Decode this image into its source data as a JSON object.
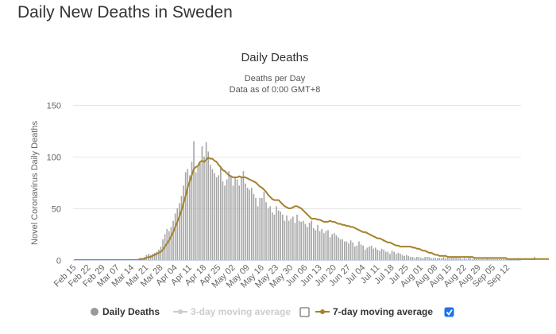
{
  "page": {
    "title": "Daily New Deaths in Sweden"
  },
  "chart_data": {
    "type": "bar",
    "title": "Daily Deaths",
    "subtitle_lines": [
      "Deaths per Day",
      "Data as of 0:00 GMT+8"
    ],
    "xlabel": "",
    "ylabel": "Novel Coronavirus Daily Deaths",
    "ylim": [
      0,
      150
    ],
    "y_ticks": [
      0,
      50,
      100,
      150
    ],
    "grid": true,
    "x_start_date": "Feb 15",
    "x_tick_labels": [
      "Feb 15",
      "Feb 22",
      "Feb 29",
      "Mar 07",
      "Mar 14",
      "Mar 21",
      "Mar 28",
      "Apr 04",
      "Apr 11",
      "Apr 18",
      "Apr 25",
      "May 02",
      "May 09",
      "May 16",
      "May 23",
      "May 30",
      "Jun 06",
      "Jun 13",
      "Jun 20",
      "Jun 27",
      "Jul 04",
      "Jul 11",
      "Jul 18",
      "Jul 25",
      "Aug 01",
      "Aug 08",
      "Aug 15",
      "Aug 22",
      "Aug 29",
      "Sep 05",
      "Sep 12"
    ],
    "series": [
      {
        "name": "Daily Deaths",
        "style": "bar",
        "color": "#a6a6a6",
        "values": [
          0,
          0,
          0,
          0,
          0,
          0,
          0,
          0,
          0,
          0,
          0,
          0,
          0,
          0,
          0,
          0,
          0,
          0,
          0,
          0,
          0,
          0,
          0,
          0,
          0,
          0,
          0,
          0,
          1,
          0,
          1,
          1,
          2,
          2,
          3,
          5,
          6,
          5,
          6,
          7,
          8,
          10,
          13,
          20,
          25,
          30,
          28,
          32,
          38,
          45,
          50,
          55,
          62,
          72,
          85,
          88,
          82,
          95,
          115,
          85,
          90,
          95,
          110,
          100,
          114,
          105,
          92,
          88,
          84,
          80,
          82,
          90,
          76,
          72,
          78,
          86,
          82,
          72,
          80,
          78,
          72,
          81,
          86,
          74,
          70,
          68,
          70,
          64,
          60,
          52,
          60,
          60,
          66,
          56,
          50,
          52,
          46,
          44,
          52,
          48,
          47,
          44,
          38,
          43,
          38,
          40,
          42,
          36,
          44,
          38,
          37,
          38,
          35,
          32,
          36,
          38,
          31,
          29,
          34,
          28,
          30,
          26,
          28,
          29,
          22,
          25,
          26,
          24,
          22,
          20,
          20,
          18,
          18,
          16,
          19,
          17,
          13,
          14,
          18,
          15,
          14,
          10,
          12,
          13,
          14,
          11,
          12,
          10,
          9,
          11,
          10,
          8,
          8,
          6,
          9,
          8,
          6,
          7,
          6,
          5,
          4,
          5,
          4,
          3,
          3,
          2,
          3,
          3,
          2,
          2,
          3,
          3,
          3,
          2,
          2,
          2,
          2,
          2,
          2,
          3,
          2,
          2,
          2,
          2,
          3,
          2,
          2,
          2,
          1,
          2,
          1,
          2,
          2,
          1,
          2,
          1,
          1,
          1,
          1,
          1,
          2,
          1,
          1,
          1,
          1,
          1,
          1,
          1,
          1,
          1,
          1,
          1,
          1,
          1,
          1,
          2,
          1,
          1,
          1,
          1,
          1,
          1,
          1,
          3
        ]
      },
      {
        "name": "7-day moving average",
        "style": "line",
        "color": "#a4822c",
        "values": [
          0,
          0,
          0,
          0,
          0,
          0,
          0,
          0,
          0,
          0,
          0,
          0,
          0,
          0,
          0,
          0,
          0,
          0,
          0,
          0,
          0,
          0,
          0,
          0,
          0,
          0,
          0,
          0,
          0,
          0,
          0,
          0,
          1,
          1,
          1,
          2,
          3,
          3,
          4,
          5,
          6,
          7,
          8,
          10,
          13,
          16,
          19,
          23,
          27,
          32,
          37,
          42,
          48,
          55,
          62,
          70,
          76,
          82,
          88,
          90,
          91,
          95,
          96,
          95,
          97,
          99,
          98,
          98,
          96,
          95,
          92,
          90,
          87,
          86,
          84,
          82,
          81,
          80,
          80,
          80,
          81,
          80,
          80,
          80,
          79,
          78,
          77,
          76,
          75,
          73,
          71,
          70,
          68,
          66,
          63,
          61,
          59,
          58,
          58,
          58,
          56,
          54,
          52,
          51,
          50,
          50,
          51,
          52,
          52,
          51,
          50,
          48,
          46,
          44,
          42,
          40,
          40,
          40,
          39,
          39,
          38,
          37,
          37,
          37,
          38,
          37,
          37,
          36,
          35,
          35,
          34,
          34,
          33,
          33,
          32,
          32,
          31,
          30,
          29,
          28,
          27,
          27,
          26,
          25,
          24,
          23,
          22,
          21,
          21,
          20,
          19,
          18,
          17,
          17,
          16,
          15,
          14,
          14,
          13,
          13,
          13,
          13,
          13,
          13,
          12,
          12,
          11,
          11,
          10,
          9,
          9,
          8,
          7,
          7,
          6,
          5,
          5,
          4,
          4,
          4,
          4,
          3,
          3,
          3,
          3,
          3,
          3,
          3,
          3,
          3,
          3,
          3,
          3,
          3,
          2,
          2,
          2,
          2,
          2,
          2,
          2,
          2,
          2,
          2,
          2,
          2,
          2,
          2,
          2,
          2,
          1,
          1,
          1,
          1,
          1,
          1,
          1,
          1,
          1,
          1,
          1,
          1,
          1,
          1,
          1,
          1,
          1,
          1,
          1,
          1,
          1
        ]
      }
    ],
    "legend": {
      "placement": "bottom",
      "items": [
        {
          "label": "Daily Deaths",
          "color": "#999999",
          "active": true,
          "checkbox": false
        },
        {
          "label": "3-day moving average",
          "color": "#cccccc",
          "active": false,
          "checkbox": true,
          "checked": false
        },
        {
          "label": "7-day moving average",
          "color": "#a4822c",
          "active": true,
          "checkbox": true,
          "checked": true
        }
      ]
    }
  }
}
